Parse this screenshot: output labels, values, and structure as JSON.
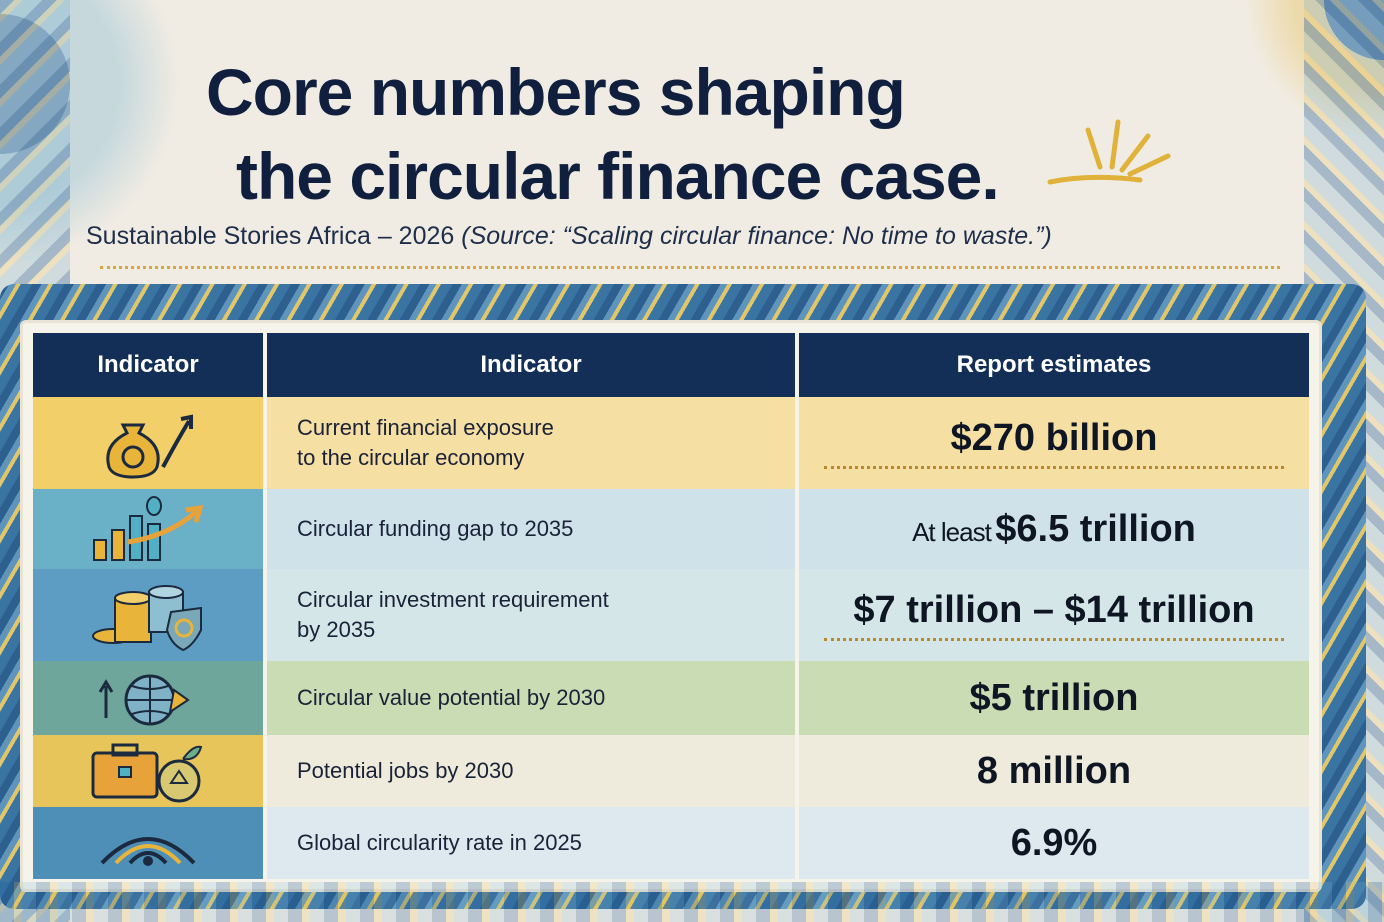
{
  "header": {
    "title_line1": "Core numbers shaping",
    "title_line2": "the circular finance case.",
    "subtitle_main": "Sustainable Stories Africa – 2026",
    "subtitle_source": "(Source: “Scaling circular finance: No time to waste.”)"
  },
  "table": {
    "headers": [
      "Indicator",
      "Indicator",
      "Report estimates"
    ],
    "rows": [
      {
        "icon": "money-bag-recycle-icon",
        "label_line1": "Current financial exposure",
        "label_line2": "to the circular economy",
        "value_prefix": "",
        "value": "$270 billion"
      },
      {
        "icon": "bar-chart-growth-icon",
        "label_line1": "Circular funding gap to 2035",
        "label_line2": "",
        "value_prefix": "At least",
        "value": "$6.5 trillion"
      },
      {
        "icon": "coins-shield-icon",
        "label_line1": "Circular investment requirement",
        "label_line2": "by 2035",
        "value_prefix": "",
        "value": "$7 trillion – $14 trillion"
      },
      {
        "icon": "globe-arrows-icon",
        "label_line1": "Circular value potential by 2030",
        "label_line2": "",
        "value_prefix": "",
        "value": "$5 trillion"
      },
      {
        "icon": "briefcase-recycle-icon",
        "label_line1": "Potential jobs by 2030",
        "label_line2": "",
        "value_prefix": "",
        "value": "8 million"
      },
      {
        "icon": "circular-waves-icon",
        "label_line1": "Global circularity rate in 2025",
        "label_line2": "",
        "value_prefix": "",
        "value": "6.9%"
      }
    ]
  },
  "colors": {
    "navy": "#142f57",
    "gold": "#f2cf69",
    "teal": "#6ab0c7",
    "title": "#0f1f3d"
  }
}
